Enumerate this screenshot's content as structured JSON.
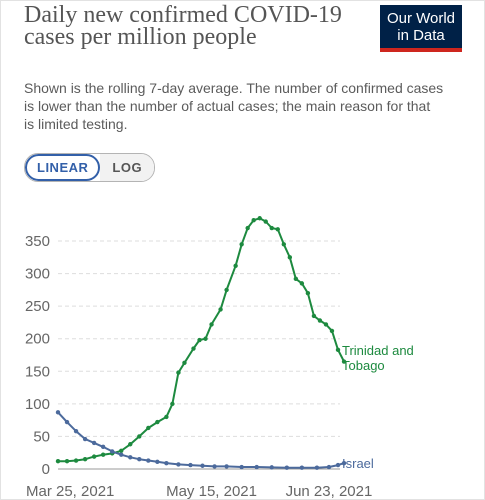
{
  "title": "Daily new confirmed COVID-19 cases per million people",
  "subtitle": "Shown is the rolling 7-day average. The number of confirmed cases is lower than the number of actual cases; the main reason for that is limited testing.",
  "logo": {
    "line1": "Our World",
    "line2": "in Data",
    "bg_color": "#002147",
    "accent_color": "#ce261e"
  },
  "scale_toggle": {
    "options": [
      "LINEAR",
      "LOG"
    ],
    "selected": "LINEAR"
  },
  "chart_data": {
    "type": "line",
    "title": "Daily new confirmed COVID-19 cases per million people",
    "x_ticks": [
      "Mar 25, 2021",
      "May 15, 2021",
      "Jun 23, 2021"
    ],
    "x_range": [
      "2021-03-25",
      "2021-06-26"
    ],
    "y_ticks": [
      0,
      50,
      100,
      150,
      200,
      250,
      300,
      350
    ],
    "ylim": [
      0,
      390
    ],
    "grid": "horizontal dashed",
    "series": [
      {
        "name": "Trinidad and Tobago",
        "color": "#1d8a3f",
        "label": [
          "Trinidad and",
          "Tobago"
        ],
        "points": [
          [
            "2021-03-25",
            12
          ],
          [
            "2021-03-28",
            12
          ],
          [
            "2021-03-31",
            13
          ],
          [
            "2021-04-03",
            15
          ],
          [
            "2021-04-06",
            19
          ],
          [
            "2021-04-09",
            22
          ],
          [
            "2021-04-12",
            24
          ],
          [
            "2021-04-15",
            28
          ],
          [
            "2021-04-18",
            38
          ],
          [
            "2021-04-21",
            50
          ],
          [
            "2021-04-24",
            63
          ],
          [
            "2021-04-27",
            72
          ],
          [
            "2021-04-30",
            80
          ],
          [
            "2021-05-02",
            100
          ],
          [
            "2021-05-04",
            148
          ],
          [
            "2021-05-06",
            163
          ],
          [
            "2021-05-09",
            185
          ],
          [
            "2021-05-11",
            198
          ],
          [
            "2021-05-13",
            200
          ],
          [
            "2021-05-15",
            222
          ],
          [
            "2021-05-18",
            245
          ],
          [
            "2021-05-20",
            275
          ],
          [
            "2021-05-23",
            312
          ],
          [
            "2021-05-25",
            345
          ],
          [
            "2021-05-27",
            370
          ],
          [
            "2021-05-29",
            382
          ],
          [
            "2021-05-31",
            385
          ],
          [
            "2021-06-02",
            380
          ],
          [
            "2021-06-04",
            370
          ],
          [
            "2021-06-06",
            368
          ],
          [
            "2021-06-08",
            345
          ],
          [
            "2021-06-10",
            325
          ],
          [
            "2021-06-12",
            292
          ],
          [
            "2021-06-14",
            285
          ],
          [
            "2021-06-16",
            270
          ],
          [
            "2021-06-18",
            235
          ],
          [
            "2021-06-20",
            228
          ],
          [
            "2021-06-22",
            222
          ],
          [
            "2021-06-24",
            212
          ],
          [
            "2021-06-26",
            183
          ],
          [
            "2021-06-28",
            165
          ]
        ]
      },
      {
        "name": "Israel",
        "color": "#4c6a9c",
        "label": [
          "Israel"
        ],
        "points": [
          [
            "2021-03-25",
            87
          ],
          [
            "2021-03-28",
            72
          ],
          [
            "2021-03-31",
            58
          ],
          [
            "2021-04-03",
            46
          ],
          [
            "2021-04-06",
            40
          ],
          [
            "2021-04-09",
            34
          ],
          [
            "2021-04-12",
            27
          ],
          [
            "2021-04-15",
            22
          ],
          [
            "2021-04-18",
            18
          ],
          [
            "2021-04-21",
            15
          ],
          [
            "2021-04-24",
            13
          ],
          [
            "2021-04-27",
            11
          ],
          [
            "2021-04-30",
            9
          ],
          [
            "2021-05-04",
            7
          ],
          [
            "2021-05-08",
            6
          ],
          [
            "2021-05-12",
            5
          ],
          [
            "2021-05-16",
            4
          ],
          [
            "2021-05-20",
            4
          ],
          [
            "2021-05-25",
            3
          ],
          [
            "2021-05-30",
            3
          ],
          [
            "2021-06-04",
            2.5
          ],
          [
            "2021-06-09",
            2
          ],
          [
            "2021-06-14",
            2
          ],
          [
            "2021-06-19",
            2
          ],
          [
            "2021-06-23",
            3
          ],
          [
            "2021-06-26",
            6
          ],
          [
            "2021-06-28",
            9
          ]
        ]
      }
    ]
  }
}
